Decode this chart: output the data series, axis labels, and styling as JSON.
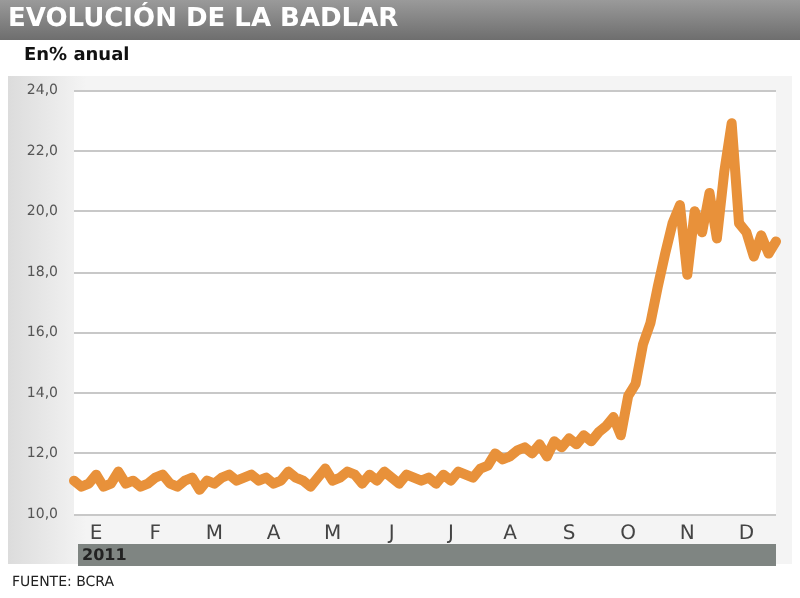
{
  "chart_data": {
    "type": "line",
    "title": "EVOLUCIÓN DE LA BADLAR",
    "subtitle": "En% anual",
    "xlabel": "2011",
    "annotations": [
      "FUENTE: BCRA"
    ],
    "categories": [
      null,
      null,
      null,
      "E",
      null,
      null,
      null,
      null,
      null,
      null,
      null,
      "F",
      null,
      null,
      null,
      null,
      null,
      null,
      null,
      "M",
      null,
      null,
      null,
      null,
      null,
      null,
      null,
      "A",
      null,
      null,
      null,
      null,
      null,
      null,
      null,
      "M",
      null,
      null,
      null,
      null,
      null,
      null,
      null,
      "J",
      null,
      null,
      null,
      null,
      null,
      null,
      null,
      "J",
      null,
      null,
      null,
      null,
      null,
      null,
      null,
      "A",
      null,
      null,
      null,
      null,
      null,
      null,
      null,
      "S",
      null,
      null,
      null,
      null,
      null,
      null,
      null,
      "O",
      null,
      null,
      null,
      null,
      null,
      null,
      null,
      "N",
      null,
      null,
      null,
      null,
      null,
      null,
      null,
      "D",
      null,
      null,
      null,
      null
    ],
    "series": [
      {
        "color": "#e8913a",
        "values": [
          11.1,
          10.9,
          11.0,
          11.3,
          10.9,
          11.0,
          11.4,
          11.0,
          11.1,
          10.9,
          11.0,
          11.2,
          11.3,
          11.0,
          10.9,
          11.1,
          11.2,
          10.8,
          11.1,
          11.0,
          11.2,
          11.3,
          11.1,
          11.2,
          11.3,
          11.1,
          11.2,
          11.0,
          11.1,
          11.4,
          11.2,
          11.1,
          10.9,
          11.2,
          11.5,
          11.1,
          11.2,
          11.4,
          11.3,
          11.0,
          11.3,
          11.1,
          11.4,
          11.2,
          11.0,
          11.3,
          11.2,
          11.1,
          11.2,
          11.0,
          11.3,
          11.1,
          11.4,
          11.3,
          11.2,
          11.5,
          11.6,
          12.0,
          11.8,
          11.9,
          12.1,
          12.2,
          12.0,
          12.3,
          11.9,
          12.4,
          12.2,
          12.5,
          12.3,
          12.6,
          12.4,
          12.7,
          12.9,
          13.2,
          12.6,
          13.9,
          14.3,
          15.6,
          16.3,
          17.5,
          18.6,
          19.6,
          20.2,
          17.9,
          20.0,
          19.3,
          20.6,
          19.1,
          21.3,
          22.9,
          19.6,
          19.3,
          18.5,
          19.2,
          18.6,
          19.0
        ]
      }
    ],
    "ylim": [
      10,
      24
    ],
    "yticks": [
      {
        "value": 10,
        "label": "10,0"
      },
      {
        "value": 12,
        "label": "12,0"
      },
      {
        "value": 14,
        "label": "14,0"
      },
      {
        "value": 16,
        "label": "16,0"
      },
      {
        "value": 18,
        "label": "18,0"
      },
      {
        "value": 20,
        "label": "20,0"
      },
      {
        "value": 22,
        "label": "22,0"
      },
      {
        "value": 24,
        "label": "24,0"
      }
    ],
    "grid": "y",
    "marker": "none",
    "line_style": "solid"
  }
}
